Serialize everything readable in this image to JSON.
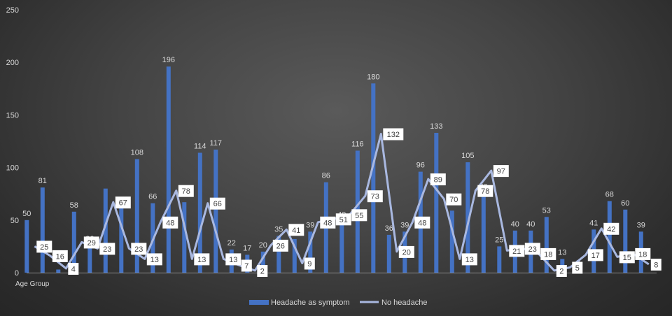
{
  "chart_data": {
    "type": "bar",
    "xlabel": "Age Group",
    "ylim": [
      0,
      250
    ],
    "yticks": [
      0,
      50,
      100,
      150,
      200,
      250
    ],
    "grid": false,
    "legend_position": "bottom",
    "categories_count": 40,
    "series": [
      {
        "name": "Headache as symptom",
        "type": "bar",
        "color": "#4472C4",
        "values": [
          50,
          81,
          3,
          58,
          26,
          80,
          62,
          108,
          66,
          196,
          67,
          114,
          117,
          22,
          17,
          20,
          35,
          32,
          39,
          86,
          49,
          116,
          180,
          36,
          39,
          96,
          133,
          59,
          105,
          75,
          25,
          40,
          40,
          53,
          13,
          3,
          41,
          68,
          60,
          39
        ]
      },
      {
        "name": "No headache",
        "type": "line",
        "color": "#A9B8E0",
        "values": [
          25,
          16,
          4,
          29,
          23,
          67,
          23,
          13,
          48,
          78,
          13,
          66,
          13,
          7,
          2,
          26,
          41,
          9,
          48,
          51,
          55,
          73,
          132,
          20,
          48,
          89,
          70,
          13,
          78,
          97,
          21,
          23,
          18,
          2,
          5,
          17,
          42,
          15,
          18,
          8
        ]
      }
    ],
    "bar_labels_shown": [
      0,
      1,
      3,
      4,
      7,
      8,
      9,
      11,
      12,
      13,
      14,
      15,
      16,
      18,
      19,
      20,
      21,
      22,
      23,
      24,
      25,
      26,
      28,
      29,
      30,
      31,
      32,
      33,
      34,
      35,
      36,
      37,
      38,
      39
    ]
  }
}
